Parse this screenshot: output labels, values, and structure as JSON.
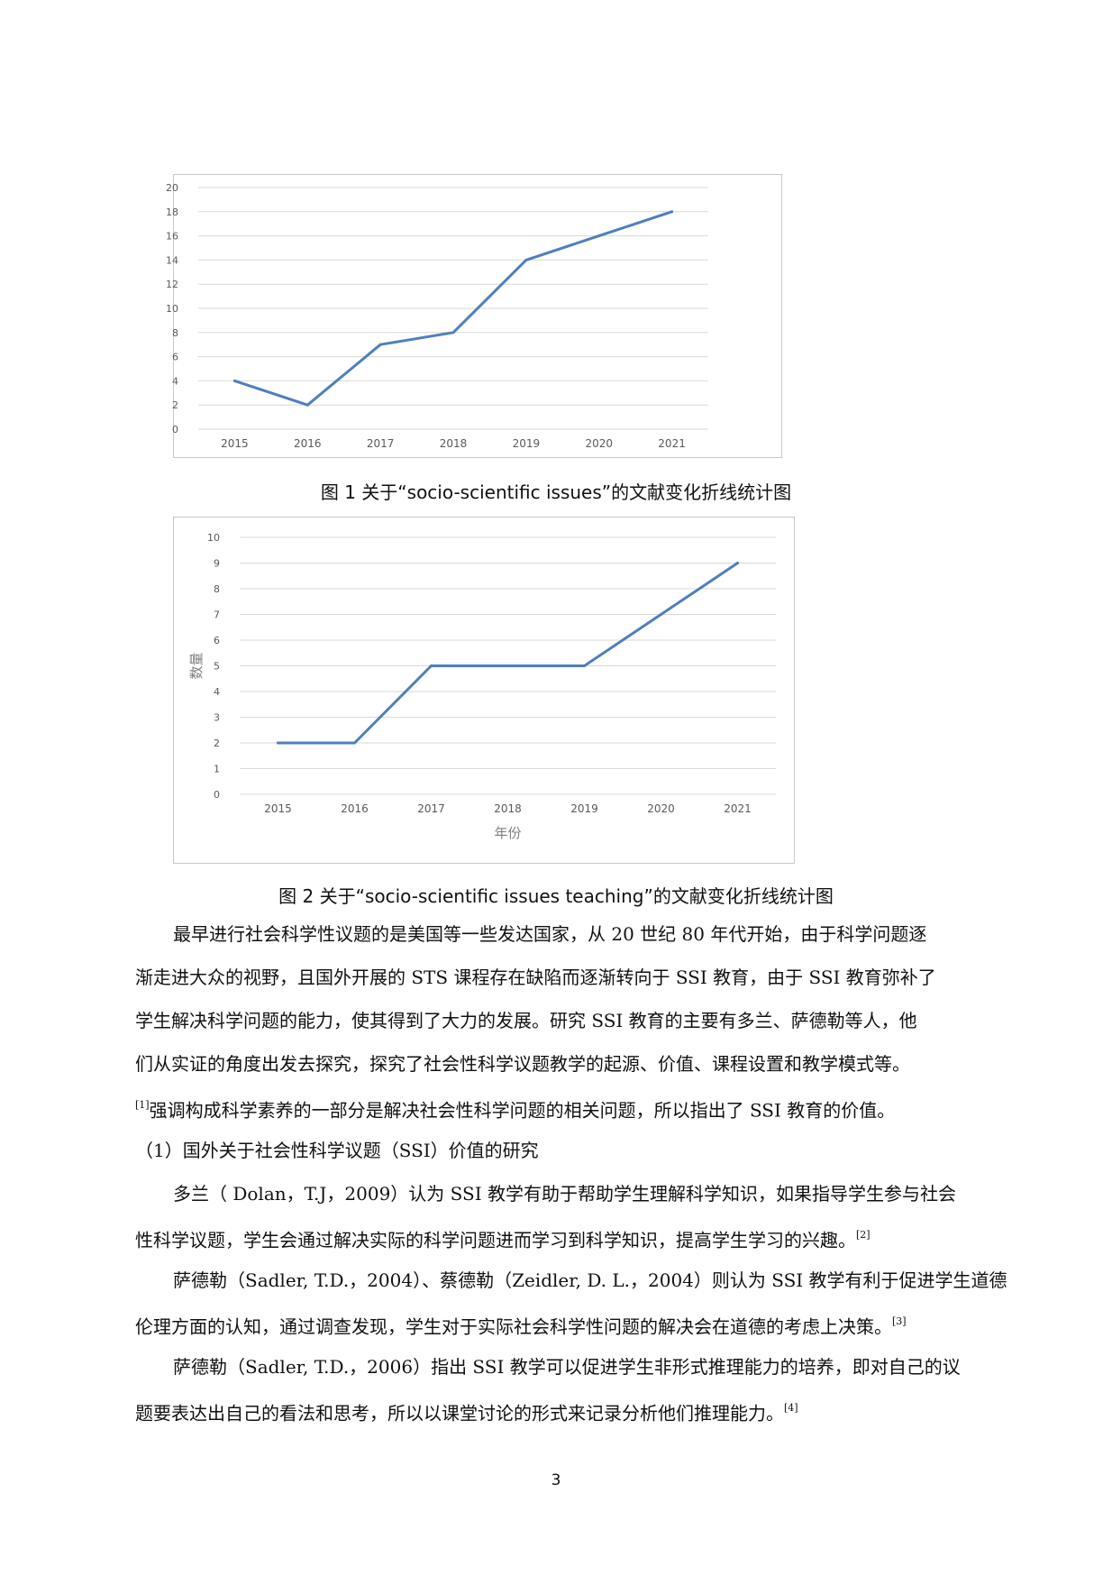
{
  "chart_data": [
    {
      "type": "line",
      "categories": [
        "2015",
        "2016",
        "2017",
        "2018",
        "2019",
        "2020",
        "2021"
      ],
      "series": [
        {
          "values": [
            4,
            2,
            7,
            8,
            14,
            16,
            18
          ]
        }
      ],
      "yticks": [
        "0",
        "2",
        "4",
        "6",
        "8",
        "10",
        "12",
        "14",
        "16",
        "18",
        "20"
      ],
      "ylim": [
        0,
        20
      ],
      "xlabel": "",
      "ylabel": "",
      "grid": true,
      "line_color": "#4f7fbd"
    },
    {
      "type": "line",
      "categories": [
        "2015",
        "2016",
        "2017",
        "2018",
        "2019",
        "2020",
        "2021"
      ],
      "series": [
        {
          "values": [
            2,
            2,
            5,
            5,
            5,
            7,
            9
          ]
        }
      ],
      "yticks": [
        "0",
        "1",
        "2",
        "3",
        "4",
        "5",
        "6",
        "7",
        "8",
        "9",
        "10"
      ],
      "ylim": [
        0,
        10
      ],
      "xlabel": "年份",
      "ylabel": "数量",
      "grid": true,
      "line_color": "#4f7fbd"
    }
  ],
  "captions": {
    "fig1": "图 1 关于“socio-scientific issues”的文献变化折线统计图",
    "fig2": "图 2 关于“socio-scientific issues teaching”的文献变化折线统计图"
  },
  "paragraphs": {
    "p1": [
      "最早进行社会科学性议题的是美国等一些发达国家，从 20 世纪 80 年代开始，由于科学问题逐",
      "渐走进大众的视野，且国外开展的 STS 课程存在缺陷而逐渐转向于 SSI 教育，由于 SSI 教育弥补了",
      "学生解决科学问题的能力，使其得到了大力的发展。研究 SSI 教育的主要有多兰、萨德勒等人，他",
      "们从实证的角度出发去探究，探究了社会性科学议题教学的起源、价值、课程设置和教学模式等。"
    ],
    "p1_ref": "[1]",
    "p1_last": "强调构成科学素养的一部分是解决社会性科学问题的相关问题，所以指出了 SSI 教育的价值。",
    "heading": "（1）国外关于社会性科学议题（SSI）价值的研究",
    "p2": [
      "多兰（ Dolan，T.J，2009）认为 SSI 教学有助于帮助学生理解科学知识，如果指导学生参与社会",
      "性科学议题，学生会通过解决实际的科学问题进而学习到科学知识，提高学生学习的兴趣。"
    ],
    "p2_ref": "[2]",
    "p3": [
      "萨德勒（Sadler, T.D.，2004）、蔡德勒（Zeidler, D. L.，2004）则认为 SSI 教学有利于促进学生道德",
      "伦理方面的认知，通过调查发现，学生对于实际社会科学性问题的解决会在道德的考虑上决策。"
    ],
    "p3_ref": "[3]",
    "p4": [
      "萨德勒（Sadler, T.D.，2006）指出 SSI 教学可以促进学生非形式推理能力的培养，即对自己的议",
      "题要表达出自己的看法和思考，所以以课堂讨论的形式来记录分析他们推理能力。"
    ],
    "p4_ref": "[4]"
  },
  "page_number": "3"
}
